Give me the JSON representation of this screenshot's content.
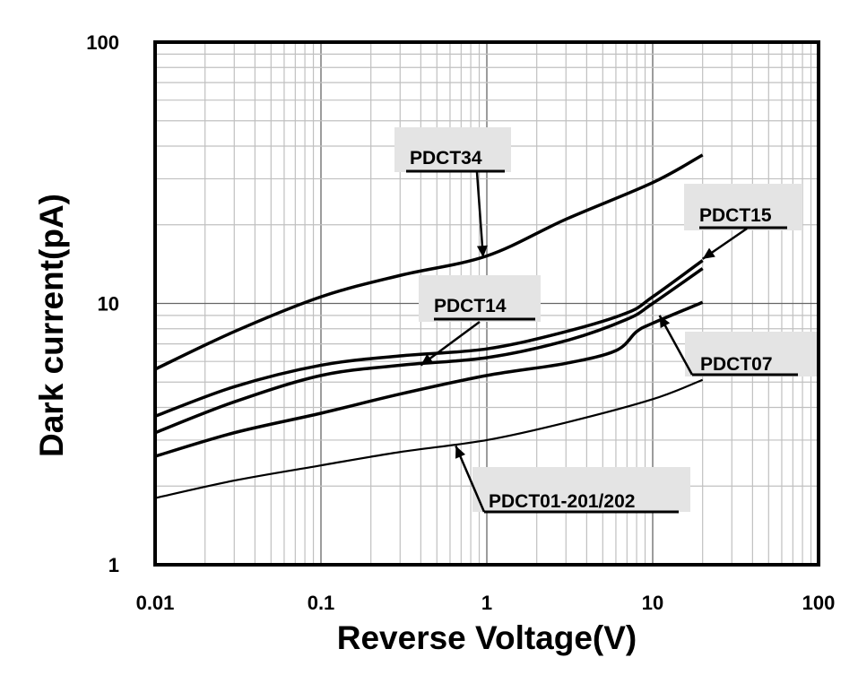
{
  "chart_data": {
    "type": "line",
    "title": "",
    "xlabel": "Reverse Voltage(V)",
    "ylabel": "Dark current(pA)",
    "xscale": "log",
    "yscale": "log",
    "xlim": [
      0.01,
      100
    ],
    "ylim": [
      1,
      100
    ],
    "grid": true,
    "legend": "annotations",
    "x_ticks": [
      "0.01",
      "0.1",
      "1",
      "10",
      "100"
    ],
    "y_ticks": [
      "1",
      "10",
      "100"
    ],
    "x_tick_values": [
      0.01,
      0.1,
      1,
      10,
      100
    ],
    "y_tick_values": [
      1,
      10,
      100
    ],
    "series": [
      {
        "name": "PDCT34",
        "stroke": 3.5,
        "x": [
          0.01,
          0.03,
          0.1,
          0.3,
          1,
          3,
          10,
          20
        ],
        "y": [
          5.6,
          7.8,
          10.6,
          12.8,
          15.2,
          21,
          29,
          37
        ]
      },
      {
        "name": "PDCT15",
        "stroke": 3.5,
        "x": [
          0.01,
          0.03,
          0.1,
          0.3,
          1,
          3,
          7,
          10,
          20
        ],
        "y": [
          3.7,
          4.8,
          5.8,
          6.3,
          6.7,
          7.8,
          9.2,
          10.6,
          14.6
        ]
      },
      {
        "name": "PDCT14",
        "stroke": 3.5,
        "x": [
          0.01,
          0.03,
          0.1,
          0.3,
          1,
          3,
          7,
          10,
          20
        ],
        "y": [
          3.2,
          4.2,
          5.3,
          5.8,
          6.2,
          7.2,
          8.7,
          10.0,
          13.6
        ]
      },
      {
        "name": "PDCT07",
        "stroke": 3.5,
        "x": [
          0.01,
          0.03,
          0.1,
          0.3,
          1,
          3,
          6,
          8,
          10,
          20
        ],
        "y": [
          2.6,
          3.2,
          3.8,
          4.5,
          5.3,
          5.9,
          6.6,
          7.8,
          8.4,
          10.1
        ]
      },
      {
        "name": "PDCT01-201/202",
        "stroke": 2.2,
        "x": [
          0.01,
          0.03,
          0.1,
          0.3,
          1,
          3,
          10,
          20
        ],
        "y": [
          1.8,
          2.1,
          2.4,
          2.7,
          3.0,
          3.5,
          4.3,
          5.1
        ]
      }
    ],
    "annotations": [
      {
        "text": "PDCT34",
        "series": "PDCT34",
        "arrow_to": [
          0.95,
          15.0
        ]
      },
      {
        "text": "PDCT15",
        "series": "PDCT15",
        "arrow_to": [
          20,
          14.8
        ]
      },
      {
        "text": "PDCT14",
        "series": "PDCT14",
        "arrow_to": [
          0.4,
          5.8
        ]
      },
      {
        "text": "PDCT07",
        "series": "PDCT07",
        "arrow_to": [
          11,
          9.0
        ]
      },
      {
        "text": "PDCT01-201/202",
        "series": "PDCT01-201/202",
        "arrow_to": [
          0.65,
          2.85
        ]
      }
    ],
    "colors": {
      "line": "#000000",
      "grid": "#c0c0c0",
      "grid_major": "#666666",
      "label_bg": "#e4e4e4"
    }
  }
}
